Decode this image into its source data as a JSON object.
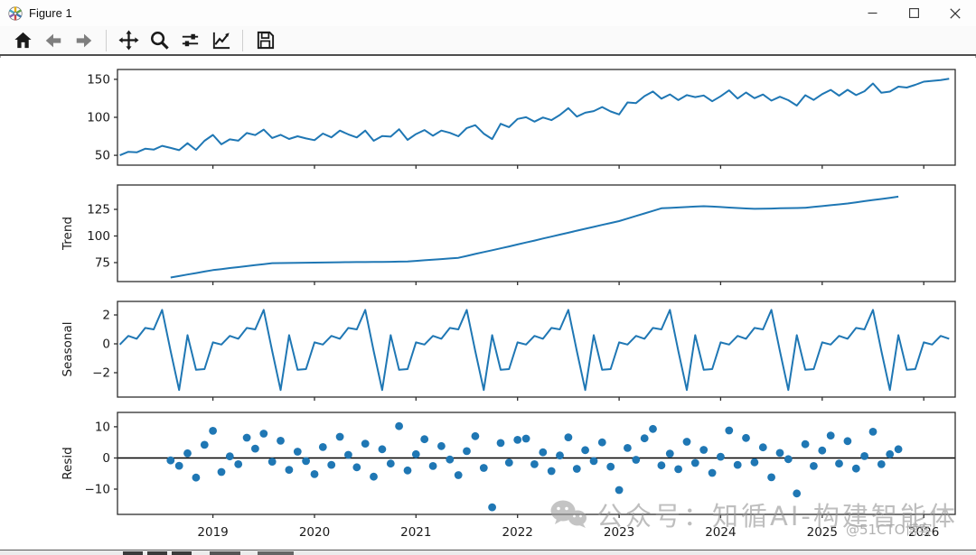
{
  "window": {
    "title": "Figure 1",
    "controls": {
      "minimize": "minimize",
      "maximize": "maximize",
      "close": "close"
    }
  },
  "toolbar": {
    "icons": [
      "home-icon",
      "back-icon",
      "forward-icon",
      "pan-icon",
      "zoom-icon",
      "subplots-icon",
      "customize-icon",
      "save-icon"
    ]
  },
  "watermark": {
    "text": "公众号：知循AI-构建智能体",
    "badge": "@51CTO博客",
    "color": "#9e9e9e"
  },
  "colors": {
    "series": "#1f77b4",
    "spine": "#2e2e2e",
    "tick_text": "#1a1a1a",
    "zero_line": "#000000",
    "nav_arrow": "#7f7f7f",
    "toolbar_icon": "#1a1a1a"
  },
  "chart_data": {
    "type": "line",
    "description": "Seasonal decomposition: observed, trend, seasonal, residual panels sharing one time axis",
    "grid": false,
    "legend": "none",
    "xlim": [
      2018.06,
      2026.31
    ],
    "xticks": [
      2019,
      2020,
      2021,
      2022,
      2023,
      2024,
      2025,
      2026
    ],
    "xtick_labels": [
      "2019",
      "2020",
      "2021",
      "2022",
      "2023",
      "2024",
      "2025",
      "2026"
    ],
    "subplots": [
      {
        "name": "observed",
        "type": "line",
        "ylabel": "",
        "yticks": [
          50,
          100,
          150
        ],
        "ytick_labels": [
          "50",
          "100",
          "150"
        ],
        "ylim": [
          37,
          163
        ],
        "x_start": 2018.0833,
        "x_step": 0.0833333,
        "y": [
          50.0,
          54.6,
          53.9,
          58.6,
          57.5,
          62.4,
          59.7,
          56.7,
          65.9,
          57.1,
          69.1,
          76.8,
          64.4,
          71.0,
          69.2,
          79.3,
          76.6,
          83.8,
          72.8,
          76.9,
          71.5,
          75.0,
          72.2,
          69.9,
          78.6,
          73.6,
          82.5,
          77.5,
          73.5,
          82.5,
          69.1,
          75.3,
          74.6,
          84.3,
          70.3,
          77.9,
          83.2,
          75.8,
          82.5,
          79.5,
          75.0,
          85.9,
          89.6,
          78.5,
          71.4,
          91.4,
          87.0,
          97.9,
          100.1,
          94.3,
          99.8,
          96.3,
          103.1,
          112.1,
          101.0,
          106.1,
          108.2,
          113.6,
          107.7,
          103.8,
          119.6,
          118.8,
          127.9,
          134.0,
          124.6,
          130.2,
          122.7,
          129.2,
          126.6,
          128.8,
          121.1,
          127.7,
          135.5,
          124.7,
          132.7,
          125.2,
          130.1,
          122.0,
          127.1,
          122.6,
          115.5,
          129.1,
          123.0,
          130.6,
          136.1,
          128.5,
          136.3,
          129.3,
          134.3,
          144.6,
          132.3,
          133.9,
          140.4,
          139.2,
          142.8,
          147.0,
          148.0,
          149.1,
          150.9
        ]
      },
      {
        "name": "trend",
        "type": "line",
        "ylabel": "Trend",
        "yticks": [
          75,
          100,
          125
        ],
        "ytick_labels": [
          "75",
          "100",
          "125"
        ],
        "ylim": [
          57.2,
          147.9
        ],
        "x_start": 2018.5833,
        "x_step": 0.0833333,
        "y": [
          61.0,
          62.4,
          63.8,
          65.2,
          66.6,
          68.0,
          68.9,
          69.9,
          70.8,
          71.7,
          72.6,
          73.6,
          74.5,
          74.6,
          74.7,
          74.8,
          74.9,
          75.0,
          75.1,
          75.2,
          75.3,
          75.4,
          75.5,
          75.5,
          75.6,
          75.7,
          75.8,
          75.9,
          76.0,
          76.6,
          77.2,
          77.8,
          78.3,
          78.9,
          79.5,
          81.3,
          83.1,
          84.9,
          86.6,
          88.4,
          90.2,
          92.0,
          93.9,
          95.7,
          97.6,
          99.4,
          101.3,
          103.1,
          105.0,
          106.8,
          108.6,
          110.4,
          112.2,
          114.0,
          116.4,
          118.8,
          121.2,
          123.6,
          126.0,
          126.4,
          126.8,
          127.2,
          127.6,
          128.0,
          127.6,
          127.2,
          126.7,
          126.3,
          125.9,
          125.5,
          125.7,
          125.8,
          126.0,
          126.2,
          126.3,
          126.5,
          127.3,
          128.1,
          128.9,
          129.7,
          130.5,
          131.6,
          132.7,
          133.8,
          134.8,
          135.9,
          137.0
        ]
      },
      {
        "name": "seasonal",
        "type": "line",
        "ylabel": "Seasonal",
        "yticks": [
          -2,
          0,
          2
        ],
        "ytick_labels": [
          "−2",
          "0",
          "2"
        ],
        "ylim": [
          -3.69,
          2.94
        ],
        "x_start": 2018.0833,
        "x_step": 0.0833333,
        "y": [
          -0.05,
          0.55,
          0.35,
          1.1,
          1.0,
          2.35,
          -0.5,
          -3.2,
          0.6,
          -1.8,
          -1.75,
          0.1,
          -0.05,
          0.55,
          0.35,
          1.1,
          1.0,
          2.35,
          -0.5,
          -3.2,
          0.6,
          -1.8,
          -1.75,
          0.1,
          -0.05,
          0.55,
          0.35,
          1.1,
          1.0,
          2.35,
          -0.5,
          -3.2,
          0.6,
          -1.8,
          -1.75,
          0.1,
          -0.05,
          0.55,
          0.35,
          1.1,
          1.0,
          2.35,
          -0.5,
          -3.2,
          0.6,
          -1.8,
          -1.75,
          0.1,
          -0.05,
          0.55,
          0.35,
          1.1,
          1.0,
          2.35,
          -0.5,
          -3.2,
          0.6,
          -1.8,
          -1.75,
          0.1,
          -0.05,
          0.55,
          0.35,
          1.1,
          1.0,
          2.35,
          -0.5,
          -3.2,
          0.6,
          -1.8,
          -1.75,
          0.1,
          -0.05,
          0.55,
          0.35,
          1.1,
          1.0,
          2.35,
          -0.5,
          -3.2,
          0.6,
          -1.8,
          -1.75,
          0.1,
          -0.05,
          0.55,
          0.35,
          1.1,
          1.0,
          2.35,
          -0.5,
          -3.2,
          0.6,
          -1.8,
          -1.75,
          0.1,
          -0.05,
          0.55,
          0.35
        ]
      },
      {
        "name": "resid",
        "type": "scatter",
        "ylabel": "Resid",
        "yticks": [
          -10,
          0,
          10
        ],
        "ytick_labels": [
          "−10",
          "0",
          "10"
        ],
        "ylim": [
          -18.1,
          14.6
        ],
        "zero_line": true,
        "show_x_labels": true,
        "x_start": 2018.5833,
        "x_step": 0.0833333,
        "y": [
          -0.8,
          -2.5,
          1.5,
          -6.3,
          4.2,
          8.7,
          -4.5,
          0.5,
          -2.0,
          6.5,
          3.0,
          7.8,
          -1.2,
          5.5,
          -3.8,
          2.0,
          -1.0,
          -5.2,
          3.5,
          -2.2,
          6.8,
          1.0,
          -3.0,
          4.6,
          -6.0,
          2.8,
          -1.8,
          10.2,
          -4.0,
          1.2,
          6.0,
          -2.6,
          3.8,
          -0.5,
          -5.5,
          2.2,
          7.0,
          -3.2,
          -15.8,
          4.8,
          -1.5,
          5.8,
          6.2,
          -2.0,
          1.8,
          -4.2,
          0.8,
          6.6,
          -3.5,
          2.5,
          -1.0,
          5.0,
          -2.8,
          -10.3,
          3.2,
          -0.6,
          6.3,
          9.3,
          -2.4,
          1.4,
          -3.6,
          5.2,
          -1.6,
          2.6,
          -4.8,
          0.4,
          8.8,
          -2.2,
          6.4,
          -1.4,
          3.4,
          -6.2,
          1.6,
          -0.4,
          -11.4,
          4.4,
          -2.6,
          2.4,
          7.2,
          -1.8,
          5.4,
          -3.4,
          0.6,
          8.4,
          -2.0,
          1.2,
          2.8
        ]
      }
    ]
  }
}
